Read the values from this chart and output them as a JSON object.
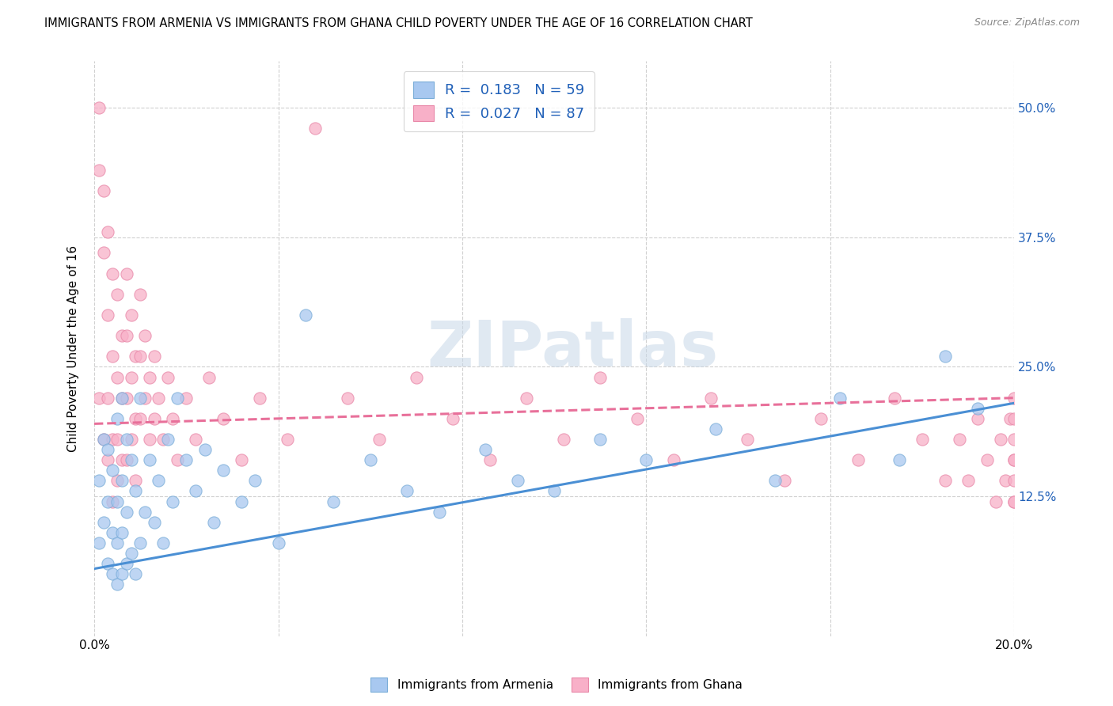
{
  "title": "IMMIGRANTS FROM ARMENIA VS IMMIGRANTS FROM GHANA CHILD POVERTY UNDER THE AGE OF 16 CORRELATION CHART",
  "source": "Source: ZipAtlas.com",
  "ylabel": "Child Poverty Under the Age of 16",
  "xlim": [
    0.0,
    0.2
  ],
  "ylim": [
    -0.01,
    0.545
  ],
  "x_ticks": [
    0.0,
    0.04,
    0.08,
    0.12,
    0.16,
    0.2
  ],
  "x_tick_labels": [
    "0.0%",
    "",
    "",
    "",
    "",
    "20.0%"
  ],
  "y_ticks": [
    0.0,
    0.125,
    0.25,
    0.375,
    0.5
  ],
  "y_tick_labels_right": [
    "",
    "12.5%",
    "25.0%",
    "37.5%",
    "50.0%"
  ],
  "armenia_color": "#a8c8f0",
  "armenia_edge_color": "#7aadd8",
  "ghana_color": "#f8b0c8",
  "ghana_edge_color": "#e888a8",
  "armenia_line_color": "#4a8fd4",
  "ghana_line_color": "#e8709a",
  "R_armenia": 0.183,
  "N_armenia": 59,
  "R_ghana": 0.027,
  "N_ghana": 87,
  "legend_text_color": "#2060b8",
  "background_color": "#ffffff",
  "grid_color": "#d0d0d0",
  "watermark": "ZIPatlas",
  "armenia_line_y0": 0.055,
  "armenia_line_y1": 0.215,
  "ghana_line_y0": 0.195,
  "ghana_line_y1": 0.22,
  "armenia_x": [
    0.001,
    0.001,
    0.002,
    0.002,
    0.003,
    0.003,
    0.003,
    0.004,
    0.004,
    0.004,
    0.005,
    0.005,
    0.005,
    0.005,
    0.006,
    0.006,
    0.006,
    0.006,
    0.007,
    0.007,
    0.007,
    0.008,
    0.008,
    0.009,
    0.009,
    0.01,
    0.01,
    0.011,
    0.012,
    0.013,
    0.014,
    0.015,
    0.016,
    0.017,
    0.018,
    0.02,
    0.022,
    0.024,
    0.026,
    0.028,
    0.032,
    0.035,
    0.04,
    0.046,
    0.052,
    0.06,
    0.068,
    0.075,
    0.085,
    0.092,
    0.1,
    0.11,
    0.12,
    0.135,
    0.148,
    0.162,
    0.175,
    0.185,
    0.192
  ],
  "armenia_y": [
    0.08,
    0.14,
    0.1,
    0.18,
    0.06,
    0.12,
    0.17,
    0.05,
    0.09,
    0.15,
    0.04,
    0.08,
    0.12,
    0.2,
    0.05,
    0.09,
    0.14,
    0.22,
    0.06,
    0.11,
    0.18,
    0.07,
    0.16,
    0.05,
    0.13,
    0.08,
    0.22,
    0.11,
    0.16,
    0.1,
    0.14,
    0.08,
    0.18,
    0.12,
    0.22,
    0.16,
    0.13,
    0.17,
    0.1,
    0.15,
    0.12,
    0.14,
    0.08,
    0.3,
    0.12,
    0.16,
    0.13,
    0.11,
    0.17,
    0.14,
    0.13,
    0.18,
    0.16,
    0.19,
    0.14,
    0.22,
    0.16,
    0.26,
    0.21
  ],
  "ghana_x": [
    0.001,
    0.001,
    0.001,
    0.002,
    0.002,
    0.002,
    0.003,
    0.003,
    0.003,
    0.003,
    0.004,
    0.004,
    0.004,
    0.004,
    0.005,
    0.005,
    0.005,
    0.005,
    0.006,
    0.006,
    0.006,
    0.007,
    0.007,
    0.007,
    0.007,
    0.008,
    0.008,
    0.008,
    0.009,
    0.009,
    0.009,
    0.01,
    0.01,
    0.01,
    0.011,
    0.011,
    0.012,
    0.012,
    0.013,
    0.013,
    0.014,
    0.015,
    0.016,
    0.017,
    0.018,
    0.02,
    0.022,
    0.025,
    0.028,
    0.032,
    0.036,
    0.042,
    0.048,
    0.055,
    0.062,
    0.07,
    0.078,
    0.086,
    0.094,
    0.102,
    0.11,
    0.118,
    0.126,
    0.134,
    0.142,
    0.15,
    0.158,
    0.166,
    0.174,
    0.18,
    0.185,
    0.188,
    0.19,
    0.192,
    0.194,
    0.196,
    0.197,
    0.198,
    0.199,
    0.2,
    0.2,
    0.2,
    0.2,
    0.2,
    0.2,
    0.2,
    0.2
  ],
  "ghana_y": [
    0.44,
    0.5,
    0.22,
    0.42,
    0.36,
    0.18,
    0.38,
    0.3,
    0.22,
    0.16,
    0.34,
    0.26,
    0.18,
    0.12,
    0.32,
    0.24,
    0.18,
    0.14,
    0.28,
    0.22,
    0.16,
    0.34,
    0.28,
    0.22,
    0.16,
    0.3,
    0.24,
    0.18,
    0.26,
    0.2,
    0.14,
    0.32,
    0.26,
    0.2,
    0.28,
    0.22,
    0.24,
    0.18,
    0.26,
    0.2,
    0.22,
    0.18,
    0.24,
    0.2,
    0.16,
    0.22,
    0.18,
    0.24,
    0.2,
    0.16,
    0.22,
    0.18,
    0.48,
    0.22,
    0.18,
    0.24,
    0.2,
    0.16,
    0.22,
    0.18,
    0.24,
    0.2,
    0.16,
    0.22,
    0.18,
    0.14,
    0.2,
    0.16,
    0.22,
    0.18,
    0.14,
    0.18,
    0.14,
    0.2,
    0.16,
    0.12,
    0.18,
    0.14,
    0.2,
    0.22,
    0.16,
    0.12,
    0.18,
    0.14,
    0.2,
    0.16,
    0.12
  ]
}
